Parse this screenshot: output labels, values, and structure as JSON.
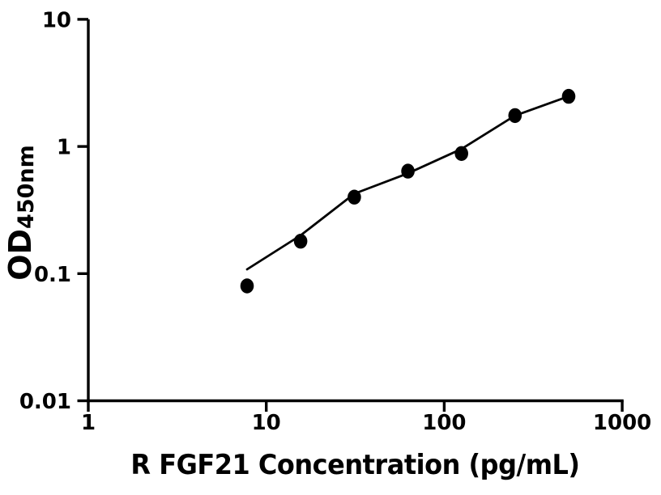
{
  "page": {
    "background_color": "#ffffff",
    "foreground_color": "#000000"
  },
  "chart_data": {
    "type": "scatter",
    "title": "",
    "xlabel": "R FGF21 Concentration (pg/mL)",
    "ylabel_main": "OD",
    "ylabel_sub": "450nm",
    "x_scale": "log10",
    "y_scale": "log10",
    "xlim": [
      1,
      1000
    ],
    "ylim": [
      0.01,
      10
    ],
    "grid": false,
    "legend": false,
    "axis_color": "#000000",
    "x_ticks": [
      {
        "value": 1,
        "label": "1"
      },
      {
        "value": 10,
        "label": "10"
      },
      {
        "value": 100,
        "label": "100"
      },
      {
        "value": 1000,
        "label": "1000"
      }
    ],
    "y_ticks": [
      {
        "value": 10,
        "label": "10"
      },
      {
        "value": 1,
        "label": "1"
      },
      {
        "value": 0.1,
        "label": "0.1"
      },
      {
        "value": 0.01,
        "label": "0.01"
      }
    ],
    "series": [
      {
        "name": "standard-points",
        "role": "points",
        "marker": "filled-circle",
        "color": "#000000",
        "x": [
          7.8,
          15.6,
          31.25,
          62.5,
          125,
          250,
          500
        ],
        "y": [
          0.08,
          0.18,
          0.4,
          0.64,
          0.88,
          1.75,
          2.48
        ]
      },
      {
        "name": "fit-curve",
        "role": "curve",
        "color": "#000000",
        "x": [
          7.8,
          15.6,
          31.25,
          62.5,
          125,
          250,
          500
        ],
        "y": [
          0.108,
          0.2,
          0.425,
          0.615,
          0.955,
          1.75,
          2.48
        ]
      }
    ]
  }
}
